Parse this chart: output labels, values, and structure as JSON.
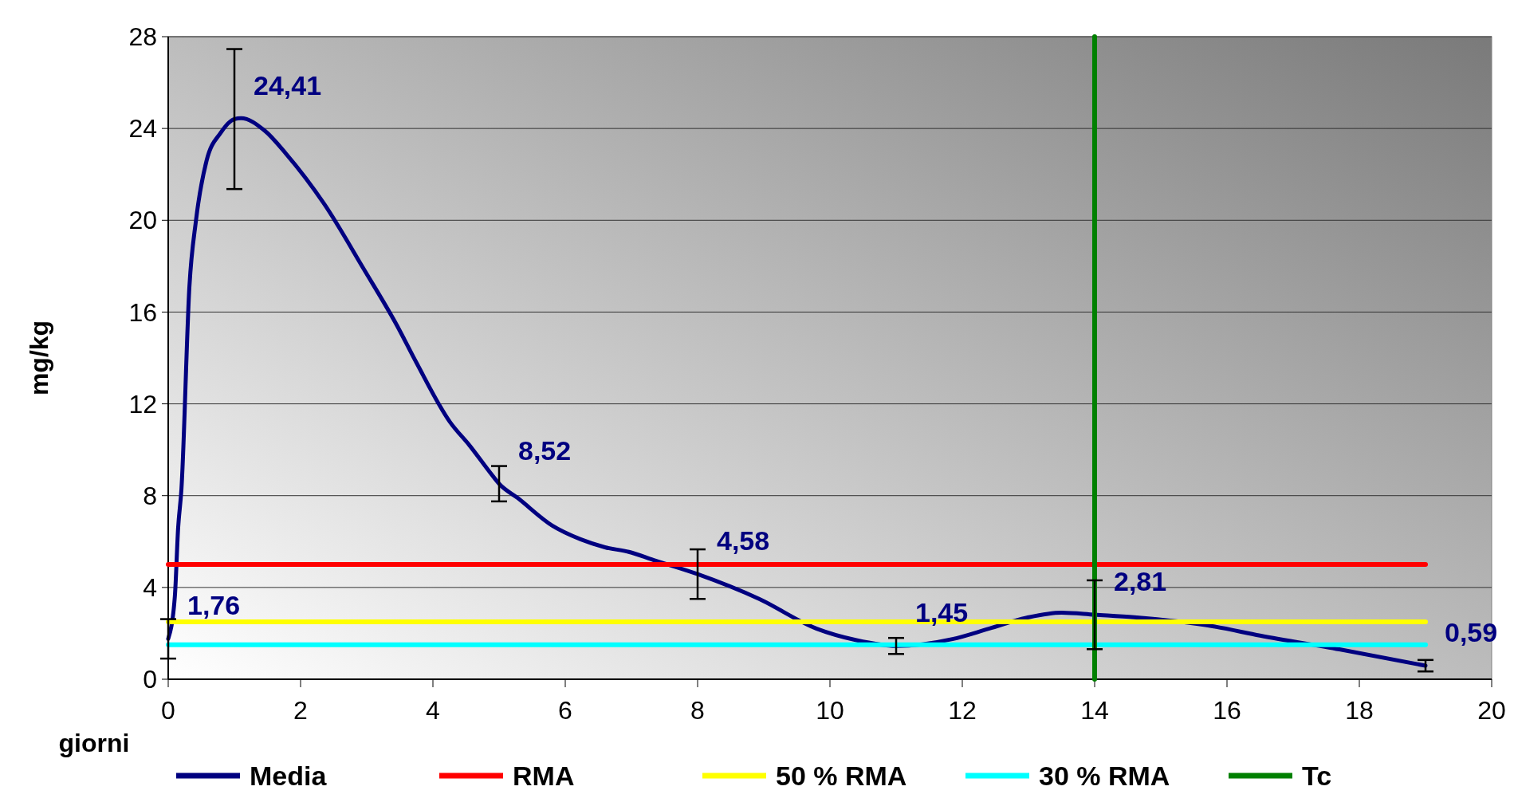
{
  "chart_data": {
    "type": "line",
    "xlabel": "giorni",
    "ylabel": "mg/kg",
    "xlim": [
      0,
      20
    ],
    "ylim": [
      0,
      28
    ],
    "xticks": [
      0,
      2,
      4,
      6,
      8,
      10,
      12,
      14,
      16,
      18,
      20
    ],
    "yticks": [
      0,
      4,
      8,
      12,
      16,
      20,
      24,
      28
    ],
    "grid": "y",
    "legend": "bottom",
    "marker": "none",
    "line_style": "solid",
    "series": [
      {
        "name": "Media",
        "color": "#000080",
        "x": [
          0,
          0.1,
          0.15,
          0.2,
          0.32,
          0.42,
          0.58,
          0.79,
          1,
          1.1,
          1.46,
          1.78,
          2.36,
          2.95,
          3.46,
          3.75,
          4.26,
          4.55,
          4.92,
          5,
          5.28,
          5.8,
          6.23,
          6.6,
          6.96,
          7.33,
          8,
          8.93,
          9.8,
          10.4,
          11,
          11.85,
          12.4,
          13,
          13.5,
          14,
          14.6,
          15.8,
          16.5,
          17.7,
          19
        ],
        "values": [
          1.76,
          3.6,
          6.6,
          8.3,
          17.1,
          20,
          22.6,
          23.8,
          24.41,
          24.45,
          23.9,
          22.9,
          20.7,
          17.9,
          15.4,
          13.8,
          11.2,
          10.2,
          8.8,
          8.52,
          7.9,
          6.7,
          6.1,
          5.75,
          5.55,
          5.2,
          4.58,
          3.5,
          2.2,
          1.7,
          1.45,
          1.75,
          2.2,
          2.7,
          2.9,
          2.81,
          2.7,
          2.3,
          1.9,
          1.3,
          0.59
        ],
        "errors": [
          0.86,
          null,
          null,
          null,
          null,
          null,
          null,
          null,
          3.05,
          null,
          null,
          null,
          null,
          null,
          null,
          null,
          null,
          null,
          null,
          0.77,
          null,
          null,
          null,
          null,
          null,
          null,
          1.08,
          null,
          null,
          null,
          0.35,
          null,
          null,
          null,
          null,
          1.5,
          null,
          null,
          null,
          null,
          0.25
        ],
        "value_labels": [
          "1,76",
          null,
          null,
          null,
          null,
          null,
          null,
          null,
          "24,41",
          null,
          null,
          null,
          null,
          null,
          null,
          null,
          null,
          null,
          null,
          "8,52",
          null,
          null,
          null,
          null,
          null,
          null,
          "4,58",
          null,
          null,
          null,
          "1,45",
          null,
          null,
          null,
          null,
          "2,81",
          null,
          null,
          null,
          null,
          "0,59"
        ]
      },
      {
        "name": "RMA",
        "color": "#ff0000",
        "x": [
          0,
          19
        ],
        "values": [
          5,
          5
        ]
      },
      {
        "name": "50 % RMA",
        "color": "#ffff00",
        "x": [
          0,
          19
        ],
        "values": [
          2.5,
          2.5
        ]
      },
      {
        "name": "30 % RMA",
        "color": "#00ffff",
        "x": [
          0,
          19
        ],
        "values": [
          1.5,
          1.5
        ]
      },
      {
        "name": "Tc",
        "color": "#008000",
        "x": [
          14,
          14
        ],
        "values": [
          0,
          28
        ]
      }
    ]
  }
}
